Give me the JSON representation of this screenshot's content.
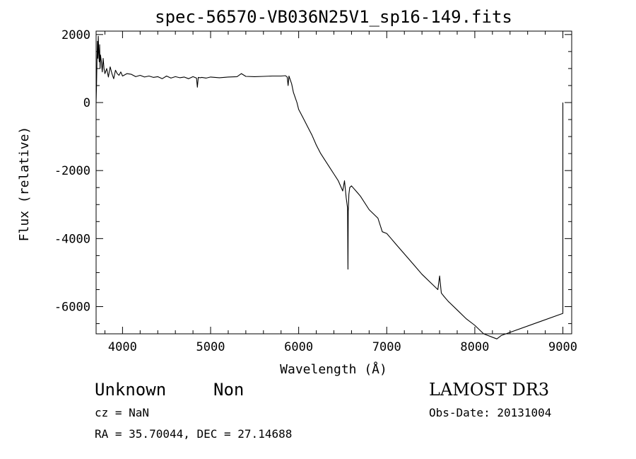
{
  "chart_data": {
    "type": "line",
    "title": "spec-56570-VB036N25V1_sp16-149.fits",
    "xlabel": "Wavelength (Å)",
    "ylabel": "Flux (relative)",
    "xlim": [
      3700,
      9100
    ],
    "ylim": [
      -6800,
      2100
    ],
    "xticks": [
      4000,
      5000,
      6000,
      7000,
      8000,
      9000
    ],
    "yticks": [
      2000,
      0,
      -2000,
      -4000,
      -6000
    ],
    "grid": false,
    "series": [
      {
        "x": [
          3700,
          3705,
          3710,
          3715,
          3720,
          3725,
          3730,
          3735,
          3740,
          3745,
          3750,
          3760,
          3770,
          3780,
          3790,
          3800,
          3820,
          3840,
          3860,
          3880,
          3900,
          3920,
          3940,
          3960,
          3980,
          4000,
          4050,
          4100,
          4150,
          4200,
          4250,
          4300,
          4350,
          4400,
          4450,
          4500,
          4550,
          4600,
          4650,
          4700,
          4750,
          4800,
          4840,
          4850,
          4860,
          4880,
          4900,
          4950,
          5000,
          5100,
          5200,
          5300,
          5350,
          5400,
          5500,
          5600,
          5700,
          5800,
          5850,
          5870,
          5880,
          5890,
          5900,
          5920,
          5940,
          5960,
          5980,
          6000,
          6050,
          6100,
          6150,
          6200,
          6250,
          6300,
          6350,
          6400,
          6450,
          6500,
          6520,
          6540,
          6555,
          6560,
          6563,
          6566,
          6570,
          6580,
          6600,
          6650,
          6700,
          6800,
          6900,
          6950,
          7000,
          7050,
          7100,
          7200,
          7300,
          7400,
          7500,
          7580,
          7600,
          7620,
          7650,
          7700,
          7800,
          7900,
          8000,
          8100,
          8200,
          8250,
          8300,
          9000,
          9000,
          9000
        ],
        "values": [
          0,
          500,
          1200,
          1800,
          1300,
          1950,
          1500,
          1200,
          1700,
          1000,
          1400,
          1200,
          900,
          1300,
          1000,
          850,
          1000,
          750,
          1050,
          850,
          700,
          950,
          850,
          800,
          900,
          780,
          850,
          830,
          760,
          800,
          750,
          780,
          740,
          760,
          700,
          780,
          720,
          760,
          730,
          750,
          700,
          760,
          720,
          450,
          740,
          730,
          740,
          720,
          750,
          730,
          750,
          760,
          850,
          770,
          760,
          770,
          780,
          780,
          790,
          750,
          500,
          780,
          700,
          550,
          300,
          150,
          0,
          -200,
          -450,
          -700,
          -950,
          -1250,
          -1500,
          -1700,
          -1900,
          -2100,
          -2300,
          -2600,
          -2300,
          -2800,
          -3100,
          -4900,
          -3200,
          -3000,
          -2700,
          -2500,
          -2450,
          -2600,
          -2750,
          -3150,
          -3400,
          -3800,
          -3850,
          -4000,
          -4150,
          -4450,
          -4750,
          -5050,
          -5300,
          -5500,
          -5100,
          -5600,
          -5700,
          -5850,
          -6100,
          -6350,
          -6550,
          -6800,
          -6900,
          -6950,
          -6850,
          -6200,
          -1200,
          0
        ]
      }
    ]
  },
  "footer": {
    "object_class": "Unknown",
    "subclass": "Non",
    "survey": "LAMOST DR3",
    "redshift": "cz = NaN",
    "obs_date": "Obs-Date: 20131004",
    "coords": "RA =  35.70044, DEC =  27.14688"
  }
}
